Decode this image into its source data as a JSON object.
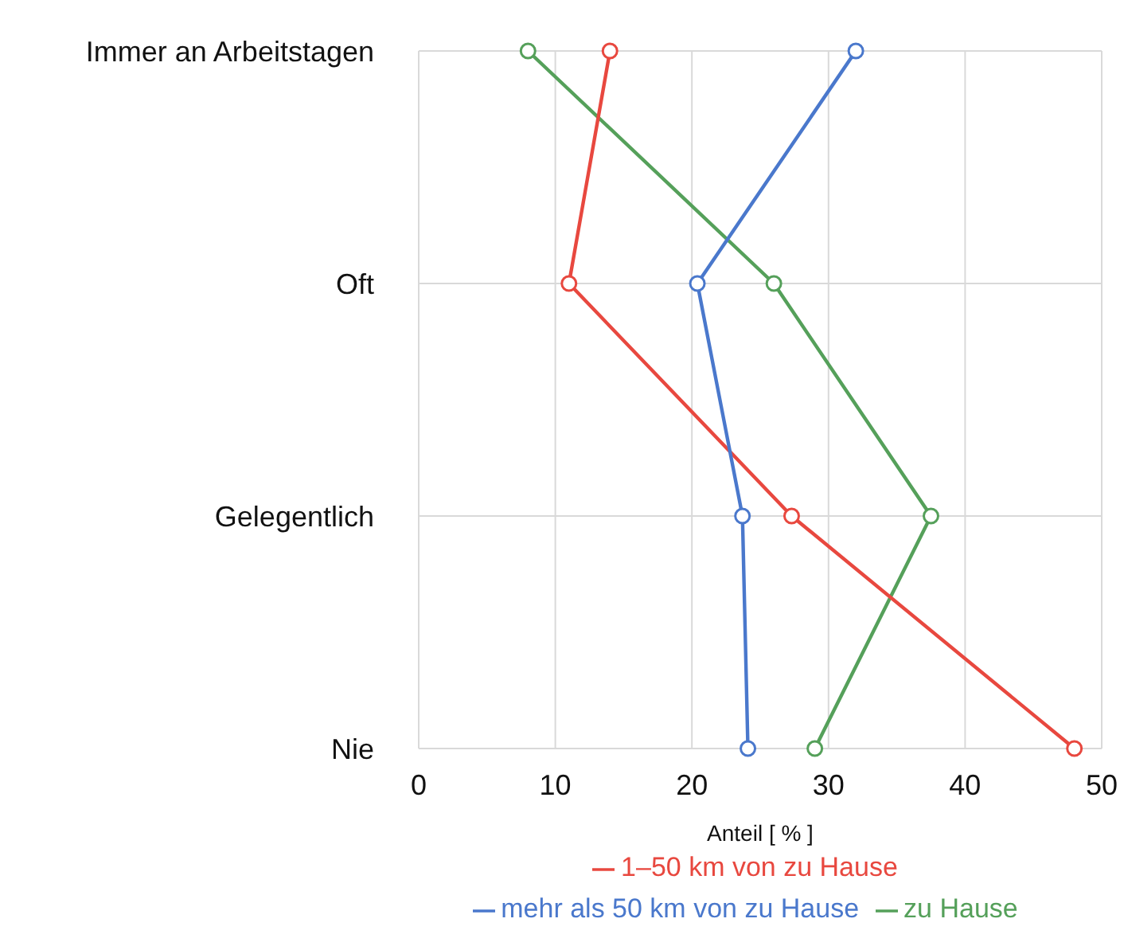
{
  "chart_data": {
    "type": "line",
    "orientation": "horizontal",
    "xlabel": "Anteil [ % ]",
    "categories": [
      "Immer an Arbeitstagen",
      "Oft",
      "Gelegentlich",
      "Nie"
    ],
    "series": [
      {
        "name": "zu Hause",
        "color": "#55a05a",
        "values": [
          8,
          26,
          37.5,
          29
        ]
      },
      {
        "name": "1–50 km von zu Hause",
        "color": "#e8483f",
        "values": [
          14,
          11,
          27.3,
          48
        ]
      },
      {
        "name": "mehr als 50 km von zu Hause",
        "color": "#4a78cc",
        "values": [
          32,
          20.4,
          23.7,
          24.1
        ]
      }
    ],
    "xlim": [
      0,
      50
    ],
    "xticks": [
      0,
      10,
      20,
      30,
      40,
      50
    ],
    "grid": true,
    "legend": "bottom",
    "marker": "circle",
    "line_style": "solid"
  }
}
